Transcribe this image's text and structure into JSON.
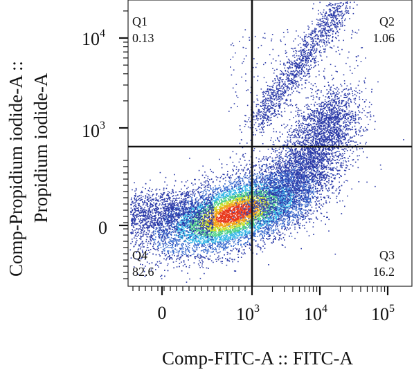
{
  "chart_data": {
    "type": "scatter",
    "subtype": "flow-cytometry-density-dotplot",
    "xlabel": "Comp-FITC-A :: FITC-A",
    "ylabel_line1": "Comp-Propidium iodide-A ::",
    "ylabel_line2": "Propidium iodide-A",
    "x_scale": "biexponential",
    "y_scale": "biexponential",
    "x_ticks": [
      {
        "value": 0,
        "base": "0",
        "exp": ""
      },
      {
        "value": 1000,
        "base": "10",
        "exp": "3"
      },
      {
        "value": 10000,
        "base": "10",
        "exp": "4"
      },
      {
        "value": 100000,
        "base": "10",
        "exp": "5"
      }
    ],
    "y_ticks": [
      {
        "value": 0,
        "base": "0",
        "exp": ""
      },
      {
        "value": 1000,
        "base": "10",
        "exp": "3"
      },
      {
        "value": 10000,
        "base": "10",
        "exp": "4"
      }
    ],
    "gate": {
      "x": 1000,
      "y": 600
    },
    "quadrants": [
      {
        "name": "Q1",
        "percent": "0.13"
      },
      {
        "name": "Q2",
        "percent": "1.06"
      },
      {
        "name": "Q3",
        "percent": "16.2"
      },
      {
        "name": "Q4",
        "percent": "82.6"
      }
    ],
    "density_colors": [
      "#2b3aa8",
      "#3e6fd0",
      "#37b7e6",
      "#4fd08a",
      "#c8de2c",
      "#f2a21a",
      "#e8391c"
    ],
    "grid": false,
    "legend": "none"
  }
}
